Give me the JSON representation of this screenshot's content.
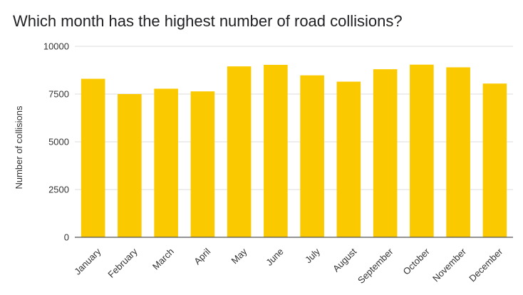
{
  "chart_data": {
    "type": "bar",
    "title": "Which month has the highest number of road collisions?",
    "xlabel": "",
    "ylabel": "Number of collisions",
    "categories": [
      "January",
      "February",
      "March",
      "April",
      "May",
      "June",
      "July",
      "August",
      "September",
      "October",
      "November",
      "December"
    ],
    "series": [
      {
        "name": "Number of collisions",
        "values": [
          8300,
          7500,
          7780,
          7640,
          8950,
          9030,
          8480,
          8150,
          8800,
          9040,
          8900,
          8050
        ]
      }
    ],
    "ylim": [
      0,
      10000
    ],
    "yticks": [
      0,
      2500,
      5000,
      7500,
      10000
    ],
    "ytick_labels": [
      "0",
      "2500",
      "5000",
      "7500",
      "10000"
    ],
    "grid": true,
    "legend": "none",
    "bar_color": "#fbc900"
  }
}
